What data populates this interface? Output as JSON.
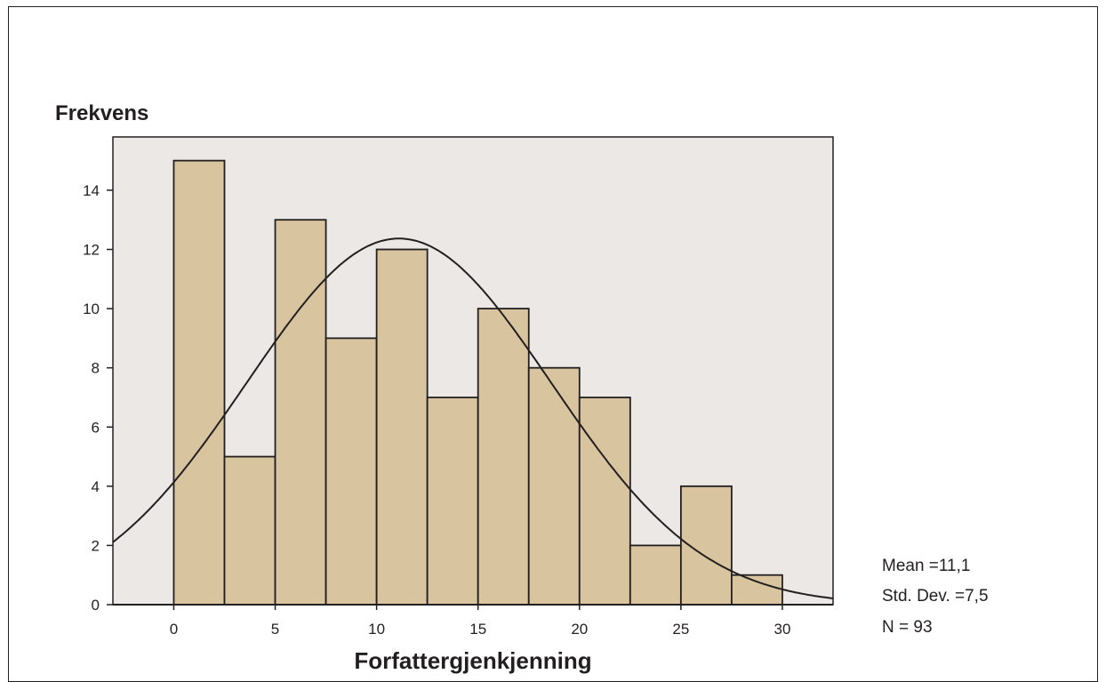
{
  "chart_data": {
    "type": "bar",
    "title": "",
    "xlabel": "Forfattergjenkjenning",
    "ylabel": "Frekvens",
    "bin_width": 2.5,
    "bins": [
      {
        "start": 0,
        "end": 2.5,
        "value": 15
      },
      {
        "start": 2.5,
        "end": 5,
        "value": 5
      },
      {
        "start": 5,
        "end": 7.5,
        "value": 13
      },
      {
        "start": 7.5,
        "end": 10,
        "value": 9
      },
      {
        "start": 10,
        "end": 12.5,
        "value": 12
      },
      {
        "start": 12.5,
        "end": 15,
        "value": 7
      },
      {
        "start": 15,
        "end": 17.5,
        "value": 10
      },
      {
        "start": 17.5,
        "end": 20,
        "value": 8
      },
      {
        "start": 20,
        "end": 22.5,
        "value": 7
      },
      {
        "start": 22.5,
        "end": 25,
        "value": 2
      },
      {
        "start": 25,
        "end": 27.5,
        "value": 4
      },
      {
        "start": 27.5,
        "end": 30,
        "value": 1
      }
    ],
    "xlim": [
      -3,
      32.5
    ],
    "ylim": [
      0,
      15.8
    ],
    "xticks": [
      "0",
      "5",
      "10",
      "15",
      "20",
      "25",
      "30"
    ],
    "yticks": [
      "0",
      "2",
      "4",
      "6",
      "8",
      "10",
      "12",
      "14"
    ],
    "normal_curve": {
      "mean": 11.1,
      "sd": 7.5,
      "n": 93
    },
    "stats": [
      "Mean =11,1",
      "Std. Dev. =7,5",
      "N = 93"
    ],
    "colors": {
      "bar": "#d8c49f",
      "plot_bg": "#ece8e6",
      "line": "#231f20"
    }
  }
}
